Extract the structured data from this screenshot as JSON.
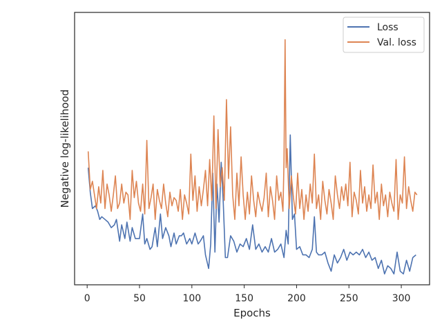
{
  "chart_data": {
    "type": "line",
    "title": "",
    "xlabel": "Epochs",
    "ylabel": "Negative log-likelihood",
    "xlim": [
      -12,
      327
    ],
    "ylim": [
      0,
      100
    ],
    "xticks": [
      0,
      50,
      100,
      150,
      200,
      250,
      300
    ],
    "yticks": [],
    "grid": false,
    "legend_position": "top-right",
    "series": [
      {
        "name": "Loss",
        "color": "#4c72b0",
        "x": [
          1,
          3,
          5,
          8,
          10,
          12,
          14,
          17,
          20,
          23,
          26,
          28,
          31,
          33,
          36,
          38,
          41,
          43,
          46,
          48,
          50,
          53,
          55,
          57,
          60,
          62,
          65,
          67,
          70,
          72,
          75,
          78,
          80,
          83,
          85,
          88,
          90,
          92,
          95,
          98,
          100,
          103,
          106,
          108,
          111,
          113,
          116,
          118,
          120,
          122,
          124,
          126,
          128,
          130,
          132,
          134,
          137,
          140,
          143,
          146,
          149,
          152,
          155,
          158,
          161,
          164,
          167,
          170,
          173,
          176,
          179,
          182,
          185,
          188,
          190,
          192,
          194,
          196,
          198,
          200,
          203,
          206,
          209,
          212,
          215,
          217,
          219,
          221,
          224,
          227,
          230,
          233,
          236,
          239,
          242,
          245,
          248,
          251,
          254,
          257,
          260,
          263,
          266,
          269,
          272,
          275,
          278,
          281,
          284,
          287,
          290,
          293,
          296,
          299,
          302,
          305,
          308,
          311,
          314
        ],
        "values": [
          43,
          34,
          28,
          29,
          27,
          24,
          25,
          24,
          23,
          21,
          22,
          24,
          16,
          22,
          17,
          23,
          16,
          21,
          17,
          17,
          17,
          26,
          15,
          17,
          13,
          14,
          21,
          14,
          26,
          17,
          21,
          18,
          14,
          19,
          15,
          18,
          18,
          19,
          15,
          17,
          15,
          19,
          15,
          16,
          18,
          11,
          6,
          15,
          41,
          12,
          37,
          23,
          45,
          30,
          10,
          10,
          18,
          16,
          12,
          15,
          14,
          17,
          13,
          22,
          13,
          15,
          12,
          14,
          12,
          17,
          12,
          13,
          15,
          10,
          20,
          15,
          55,
          24,
          26,
          13,
          14,
          11,
          11,
          10,
          13,
          25,
          12,
          11,
          11,
          12,
          8,
          5,
          11,
          8,
          10,
          13,
          9,
          12,
          11,
          12,
          11,
          13,
          10,
          12,
          9,
          10,
          6,
          9,
          4,
          7,
          6,
          4,
          12,
          5,
          4,
          9,
          5,
          10,
          11
        ],
        "label_color": "#262626"
      },
      {
        "name": "Val. loss",
        "color": "#dd8452",
        "x": [
          1,
          3,
          5,
          7,
          9,
          11,
          13,
          15,
          17,
          19,
          21,
          23,
          25,
          27,
          29,
          31,
          33,
          35,
          37,
          39,
          41,
          43,
          45,
          47,
          49,
          51,
          53,
          55,
          57,
          59,
          61,
          63,
          65,
          67,
          69,
          71,
          73,
          75,
          77,
          79,
          81,
          83,
          85,
          87,
          89,
          91,
          93,
          95,
          97,
          99,
          101,
          103,
          105,
          107,
          109,
          111,
          113,
          115,
          117,
          119,
          121,
          123,
          125,
          127,
          129,
          131,
          133,
          135,
          137,
          139,
          141,
          143,
          145,
          147,
          149,
          151,
          153,
          155,
          157,
          159,
          161,
          163,
          165,
          167,
          169,
          171,
          173,
          175,
          177,
          179,
          181,
          183,
          185,
          187,
          188,
          189,
          190,
          191,
          193,
          195,
          197,
          199,
          201,
          203,
          205,
          207,
          209,
          211,
          213,
          215,
          217,
          219,
          221,
          223,
          225,
          227,
          229,
          231,
          233,
          235,
          237,
          239,
          241,
          243,
          245,
          247,
          249,
          251,
          253,
          255,
          257,
          259,
          261,
          263,
          265,
          267,
          269,
          271,
          273,
          275,
          277,
          279,
          281,
          283,
          285,
          287,
          289,
          291,
          293,
          295,
          297,
          299,
          301,
          303,
          305,
          307,
          309,
          311,
          313,
          315
        ],
        "values": [
          49,
          35,
          38,
          33,
          28,
          36,
          30,
          42,
          28,
          37,
          33,
          27,
          33,
          40,
          28,
          30,
          37,
          30,
          34,
          33,
          24,
          42,
          32,
          38,
          30,
          27,
          37,
          26,
          53,
          28,
          32,
          37,
          24,
          35,
          31,
          28,
          37,
          30,
          25,
          34,
          29,
          32,
          31,
          27,
          35,
          24,
          33,
          30,
          26,
          48,
          31,
          40,
          27,
          36,
          29,
          35,
          42,
          29,
          46,
          31,
          62,
          28,
          57,
          36,
          43,
          31,
          68,
          39,
          58,
          33,
          24,
          41,
          29,
          47,
          33,
          24,
          34,
          26,
          40,
          31,
          25,
          34,
          30,
          27,
          32,
          41,
          25,
          36,
          31,
          24,
          40,
          31,
          34,
          27,
          45,
          90,
          43,
          50,
          28,
          40,
          32,
          26,
          41,
          28,
          35,
          24,
          33,
          27,
          37,
          30,
          48,
          28,
          33,
          24,
          38,
          31,
          26,
          35,
          30,
          24,
          40,
          33,
          28,
          36,
          31,
          37,
          29,
          45,
          25,
          34,
          31,
          26,
          42,
          30,
          36,
          27,
          33,
          28,
          44,
          30,
          34,
          24,
          37,
          29,
          33,
          25,
          34,
          30,
          27,
          46,
          24,
          33,
          30,
          47,
          28,
          36,
          31,
          27,
          34,
          33
        ]
      }
    ]
  }
}
